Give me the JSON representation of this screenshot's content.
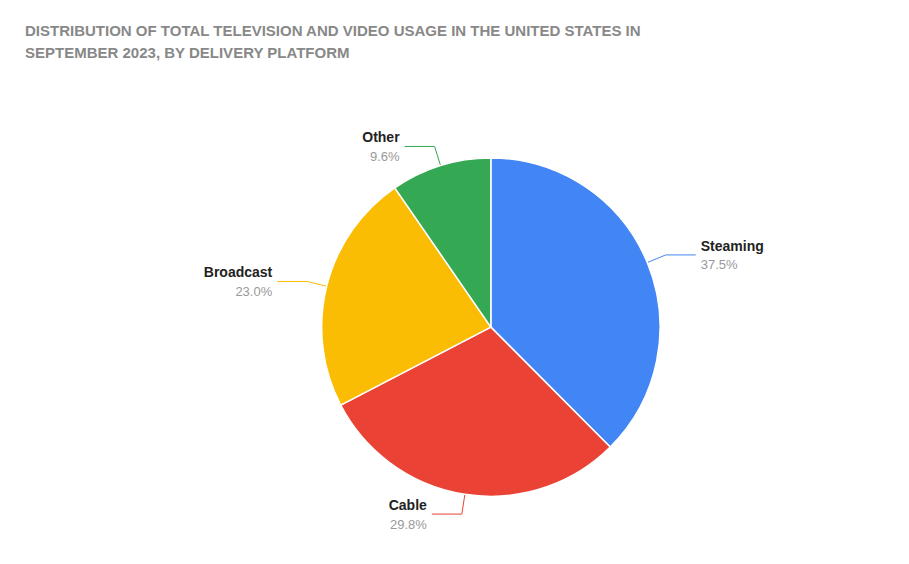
{
  "chart_data": {
    "type": "pie",
    "title": "DISTRIBUTION OF TOTAL TELEVISION AND VIDEO USAGE IN THE UNITED STATES IN\nSEPTEMBER 2023, BY DELIVERY PLATFORM",
    "categories": [
      "Steaming",
      "Cable",
      "Broadcast",
      "Other"
    ],
    "values": [
      37.5,
      29.8,
      23.0,
      9.6
    ],
    "value_labels": [
      "37.5%",
      "29.8%",
      "23.0%",
      "9.6%"
    ],
    "colors": [
      "#4285F4",
      "#EA4335",
      "#FBBC04",
      "#34A853"
    ],
    "data_labels": true
  }
}
